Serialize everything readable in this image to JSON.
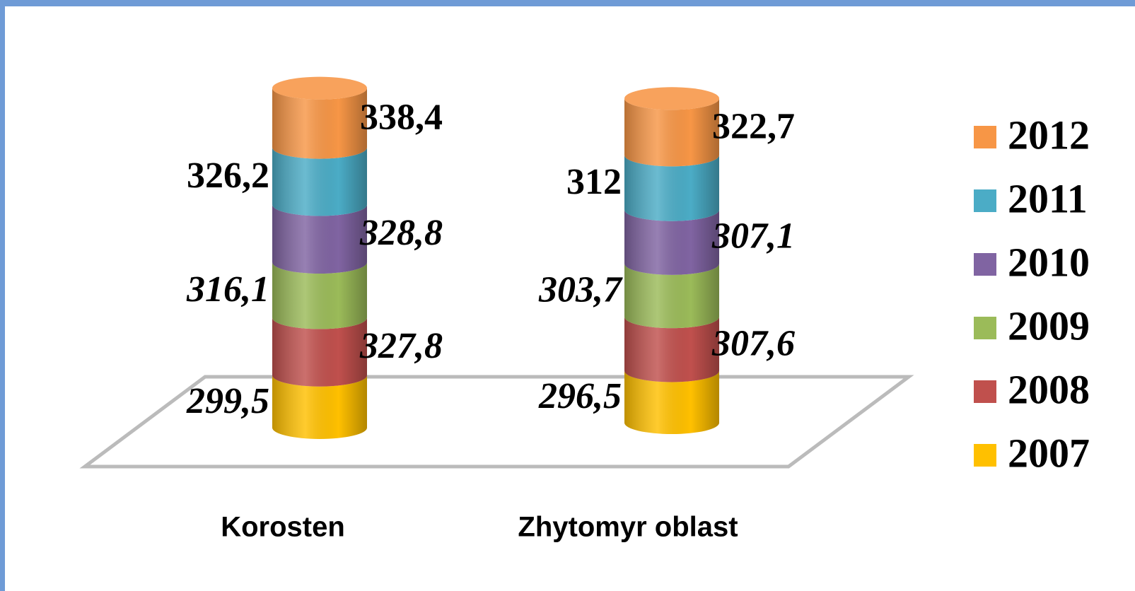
{
  "chart_data": {
    "type": "stacked-cylinder",
    "categories": [
      "Korosten",
      "Zhytomyr oblast"
    ],
    "series": [
      {
        "name": "2007",
        "color": "#FFC000",
        "values": [
          299.5,
          296.5
        ],
        "value_labels": [
          "299,5",
          "296,5"
        ]
      },
      {
        "name": "2008",
        "color": "#C0504D",
        "values": [
          327.8,
          307.6
        ],
        "value_labels": [
          "327,8",
          "307,6"
        ]
      },
      {
        "name": "2009",
        "color": "#9BBB59",
        "values": [
          316.1,
          303.7
        ],
        "value_labels": [
          "316,1",
          "303,7"
        ]
      },
      {
        "name": "2010",
        "color": "#8064A2",
        "values": [
          328.8,
          307.1
        ],
        "value_labels": [
          "328,8",
          "307,1"
        ]
      },
      {
        "name": "2011",
        "color": "#4BACC6",
        "values": [
          326.2,
          312
        ],
        "value_labels": [
          "326,2",
          "312"
        ]
      },
      {
        "name": "2012",
        "color": "#F79646",
        "values": [
          338.4,
          322.7
        ],
        "value_labels": [
          "338,4",
          "322,7"
        ]
      }
    ],
    "legend": "right"
  }
}
